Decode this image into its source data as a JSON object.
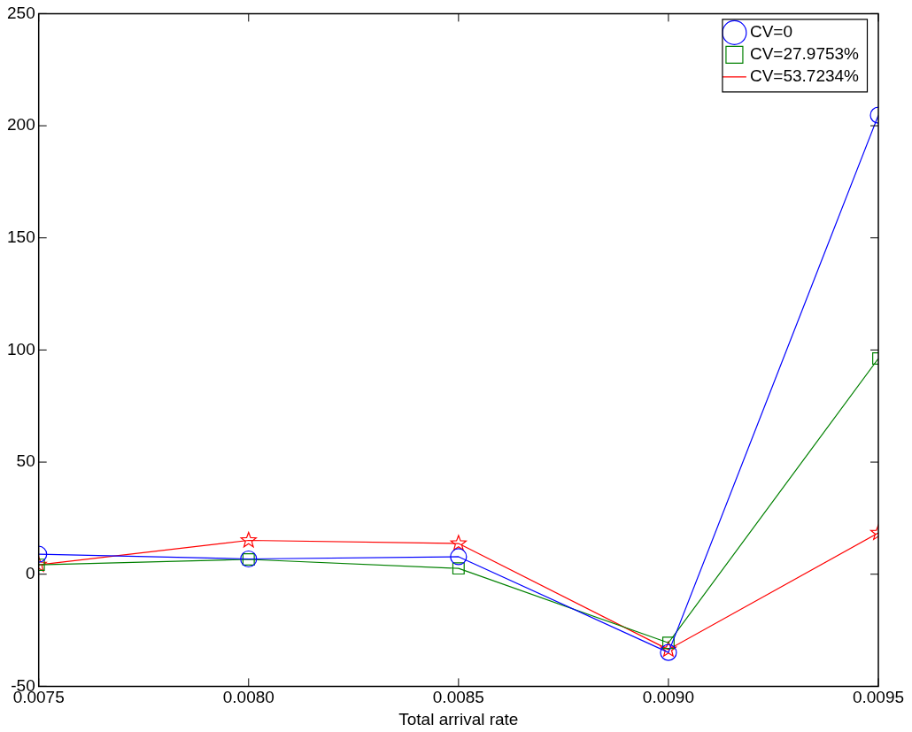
{
  "chart_data": {
    "type": "line",
    "xlabel": "Total arrival rate",
    "x": [
      0.0075,
      0.008,
      0.0085,
      0.009,
      0.0095
    ],
    "xlim": [
      0.0075,
      0.0095
    ],
    "xticks": [
      0.0075,
      {
        "value": 0.008,
        "label": "0.0080"
      },
      0.0085,
      {
        "value": 0.009,
        "label": "0.0090"
      },
      0.0095
    ],
    "ylim": [
      -50,
      250
    ],
    "yticks": [
      -50,
      0,
      50,
      100,
      150,
      200,
      250
    ],
    "grid": false,
    "legend": "top right",
    "series": [
      {
        "name": "CV=0",
        "color": "#0000ff",
        "marker": "circle",
        "values": [
          8.9,
          6.8,
          7.8,
          -34.9,
          204.7
        ]
      },
      {
        "name": "CV=27.9753%",
        "color": "#008000",
        "marker": "square",
        "values": [
          4.2,
          6.6,
          2.6,
          -30.6,
          96.2
        ]
      },
      {
        "name": "CV=53.7234%",
        "color": "#ff0000",
        "marker": "star",
        "values": [
          4.2,
          15.1,
          13.7,
          -33.6,
          18.4
        ]
      }
    ]
  }
}
